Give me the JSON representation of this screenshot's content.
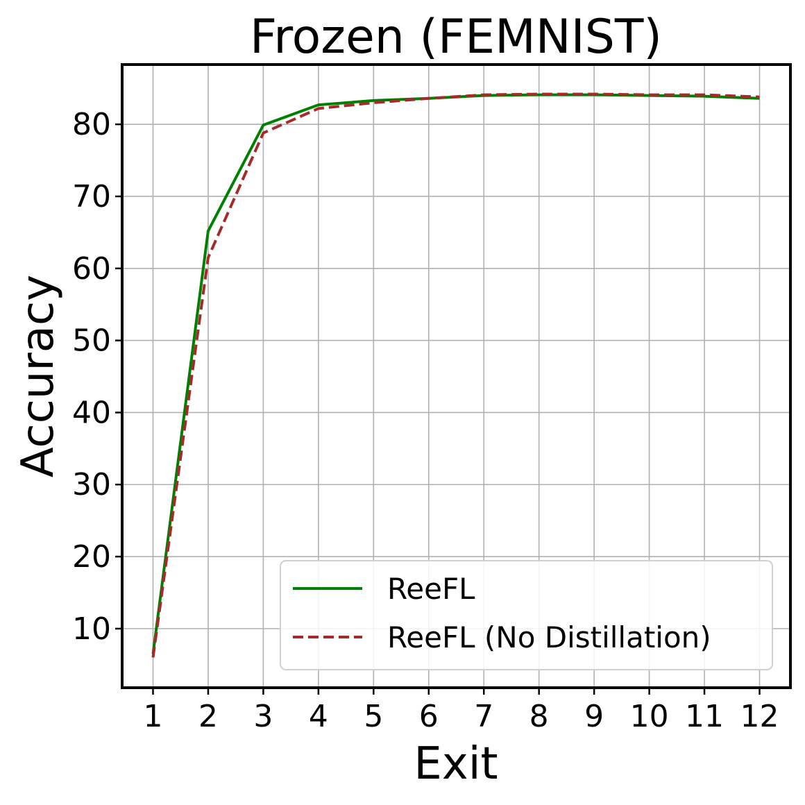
{
  "chart_data": {
    "type": "line",
    "title": "Frozen (FEMNIST)",
    "xlabel": "Exit",
    "ylabel": "Accuracy",
    "x": [
      1,
      2,
      3,
      4,
      5,
      6,
      7,
      8,
      9,
      10,
      11,
      12
    ],
    "xtick_labels": [
      "1",
      "2",
      "3",
      "4",
      "5",
      "6",
      "7",
      "8",
      "9",
      "10",
      "11",
      "12"
    ],
    "yticks": [
      10,
      20,
      30,
      40,
      50,
      60,
      70,
      80
    ],
    "ytick_labels": [
      "10",
      "20",
      "30",
      "40",
      "50",
      "60",
      "70",
      "80"
    ],
    "xlim": [
      0.44,
      12.56
    ],
    "ylim": [
      1.8,
      88.3
    ],
    "grid": true,
    "legend_position": "lower-right",
    "series": [
      {
        "name": "ReeFL",
        "color": "#008000",
        "line_style": "solid",
        "values": [
          6.5,
          65.2,
          79.9,
          82.7,
          83.3,
          83.6,
          84.0,
          84.1,
          84.1,
          84.0,
          83.9,
          83.6
        ]
      },
      {
        "name": "ReeFL (No Distillation)",
        "color": "#a52a2a",
        "line_style": "dashed",
        "values": [
          6.0,
          61.5,
          78.8,
          82.2,
          83.0,
          83.6,
          84.1,
          84.2,
          84.2,
          84.1,
          84.1,
          83.8
        ]
      }
    ]
  }
}
